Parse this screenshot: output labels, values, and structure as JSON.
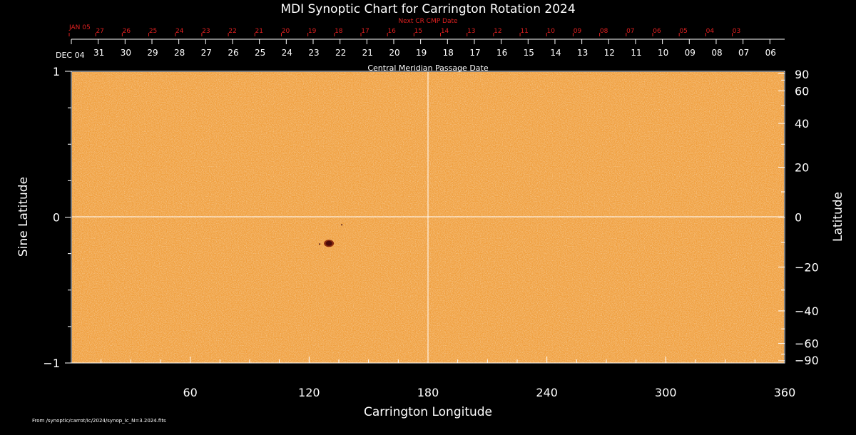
{
  "chart_data": {
    "type": "heatmap",
    "title": "MDI Synoptic Chart for Carrington Rotation 2024",
    "xlabel": "Carrington Longitude",
    "ylabel_left": "Sine Latitude",
    "ylabel_right": "Latitude",
    "xlim": [
      0,
      360
    ],
    "ylim": [
      -1,
      1
    ],
    "x_ticks": [
      "60",
      "120",
      "180",
      "240",
      "300",
      "360"
    ],
    "y_left_ticks": [
      "1",
      "0",
      "−1"
    ],
    "y_right_ticks": [
      "90",
      "60",
      "40",
      "20",
      "0",
      "−20",
      "−40",
      "−60",
      "−90"
    ],
    "top_axis": {
      "label": "Central Meridian Passage Date",
      "start_label": "DEC 04",
      "dates": [
        "31",
        "30",
        "29",
        "28",
        "27",
        "26",
        "25",
        "24",
        "23",
        "22",
        "21",
        "20",
        "19",
        "18",
        "17",
        "16",
        "15",
        "14",
        "13",
        "12",
        "11",
        "10",
        "09",
        "08",
        "07",
        "06"
      ]
    },
    "next_cr_axis": {
      "label": "Next CR CMP Date",
      "start_label": "JAN 05",
      "dates": [
        "27",
        "26",
        "25",
        "24",
        "23",
        "22",
        "21",
        "20",
        "19",
        "18",
        "17",
        "16",
        "15",
        "14",
        "13",
        "12",
        "11",
        "10",
        "09",
        "08",
        "07",
        "06",
        "05",
        "04",
        "03"
      ]
    },
    "features": [
      {
        "name": "sunspot",
        "longitude": 130,
        "sine_latitude": -0.18
      }
    ],
    "colors": {
      "background": "#000000",
      "map": "#f0a040",
      "next_cr": "#e02020",
      "sunspot": "#4a0a0a"
    },
    "footer": "From /synoptic/carrot/Ic/2024/synop_Ic_N=3.2024.fits"
  }
}
